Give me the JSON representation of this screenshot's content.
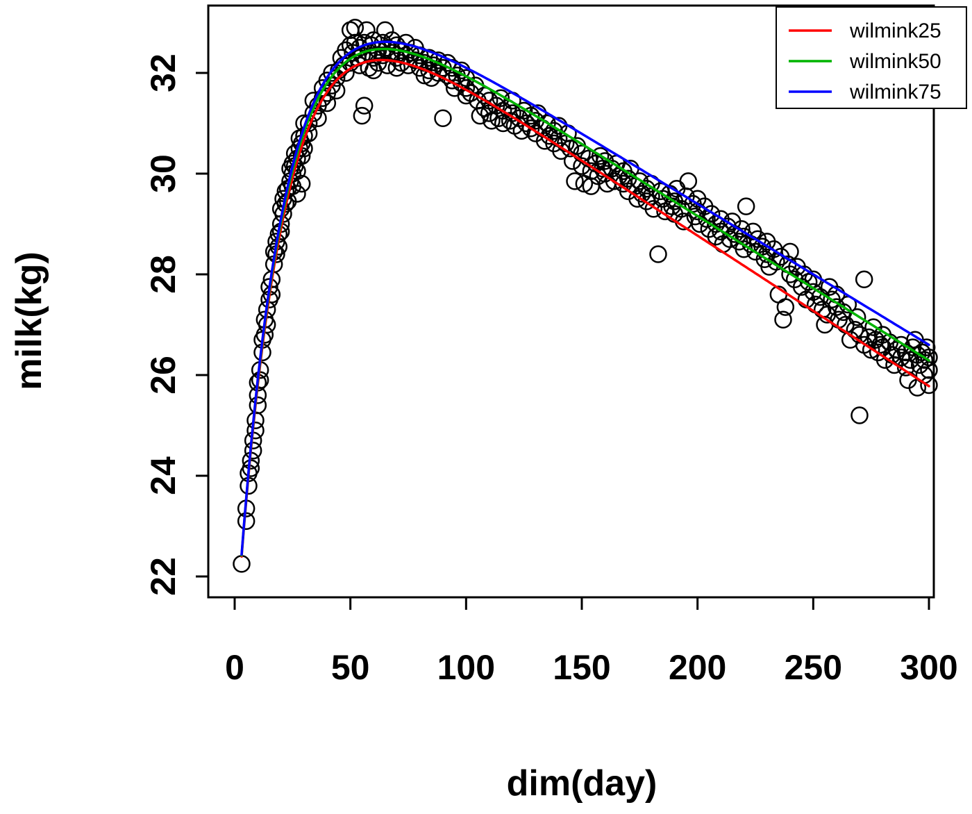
{
  "chart_data": {
    "type": "scatter",
    "title": "",
    "xlabel": "dim(day)",
    "ylabel": "milk(kg)",
    "xlim": [
      0,
      300
    ],
    "ylim": [
      22,
      33
    ],
    "x_ticks": [
      0,
      50,
      100,
      150,
      200,
      250,
      300
    ],
    "y_ticks": [
      22,
      24,
      26,
      28,
      30,
      32
    ],
    "grid": false,
    "point_style": {
      "shape": "open-circle",
      "color": "#000000"
    },
    "legend": {
      "position": "topright",
      "entries": [
        {
          "label": "wilmink25",
          "color": "#ff0000"
        },
        {
          "label": "wilmink50",
          "color": "#00b400"
        },
        {
          "label": "wilmink75",
          "color": "#0000ff"
        }
      ]
    },
    "curves": [
      {
        "name": "wilmink25",
        "color": "#ff0000",
        "model": "a + b*exp(-k*t) + c*t",
        "a": 34.75,
        "b": -14.25,
        "c": -0.0299,
        "k": 0.05,
        "t_start": 3,
        "t_end": 300
      },
      {
        "name": "wilmink50",
        "color": "#00b400",
        "model": "a + b*exp(-k*t) + c*t",
        "a": 34.9,
        "b": -14.4,
        "c": -0.0287,
        "k": 0.05,
        "t_start": 3,
        "t_end": 300
      },
      {
        "name": "wilmink75",
        "color": "#0000ff",
        "model": "a + b*exp(-k*t) + c*t",
        "a": 35.0,
        "b": -14.5,
        "c": -0.028,
        "k": 0.05,
        "t_start": 3,
        "t_end": 300
      }
    ],
    "points": [
      [
        3,
        22.25
      ],
      [
        5,
        23.1
      ],
      [
        5,
        23.35
      ],
      [
        6,
        23.8
      ],
      [
        6,
        24.05
      ],
      [
        7,
        24.3
      ],
      [
        7,
        24.15
      ],
      [
        8,
        24.7
      ],
      [
        8,
        24.5
      ],
      [
        9,
        25.1
      ],
      [
        9,
        24.9
      ],
      [
        10,
        25.6
      ],
      [
        10,
        25.85
      ],
      [
        10,
        25.4
      ],
      [
        11,
        26.1
      ],
      [
        11,
        25.9
      ],
      [
        12,
        26.45
      ],
      [
        12,
        26.7
      ],
      [
        13,
        26.8
      ],
      [
        13,
        27.1
      ],
      [
        14,
        27.3
      ],
      [
        14,
        27.0
      ],
      [
        15,
        27.5
      ],
      [
        15,
        27.75
      ],
      [
        16,
        27.9
      ],
      [
        16,
        27.6
      ],
      [
        17,
        28.2
      ],
      [
        17,
        28.45
      ],
      [
        18,
        28.4
      ],
      [
        18,
        28.65
      ],
      [
        19,
        28.8
      ],
      [
        19,
        28.55
      ],
      [
        20,
        29.0
      ],
      [
        20,
        29.3
      ],
      [
        20,
        28.85
      ],
      [
        21,
        29.2
      ],
      [
        21,
        29.5
      ],
      [
        22,
        29.4
      ],
      [
        22,
        29.65
      ],
      [
        23,
        29.7
      ],
      [
        23,
        29.45
      ],
      [
        24,
        29.85
      ],
      [
        24,
        30.1
      ],
      [
        25,
        30.0
      ],
      [
        25,
        29.75
      ],
      [
        25,
        30.2
      ],
      [
        26,
        30.15
      ],
      [
        26,
        30.4
      ],
      [
        27,
        30.3
      ],
      [
        27,
        30.05
      ],
      [
        27,
        29.6
      ],
      [
        28,
        30.5
      ],
      [
        28,
        30.7
      ],
      [
        29,
        30.6
      ],
      [
        29,
        30.35
      ],
      [
        29,
        29.8
      ],
      [
        30,
        30.75
      ],
      [
        30,
        31.0
      ],
      [
        30,
        30.5
      ],
      [
        32,
        31.0
      ],
      [
        32,
        30.8
      ],
      [
        34,
        31.2
      ],
      [
        34,
        31.45
      ],
      [
        36,
        31.35
      ],
      [
        36,
        31.1
      ],
      [
        38,
        31.5
      ],
      [
        38,
        31.7
      ],
      [
        40,
        31.6
      ],
      [
        40,
        31.85
      ],
      [
        40,
        31.4
      ],
      [
        42,
        31.75
      ],
      [
        42,
        32.0
      ],
      [
        44,
        31.9
      ],
      [
        44,
        31.65
      ],
      [
        45,
        32.05
      ],
      [
        46,
        32.3
      ],
      [
        47,
        32.15
      ],
      [
        48,
        32.45
      ],
      [
        48,
        32.0
      ],
      [
        50,
        32.55
      ],
      [
        50,
        32.85
      ],
      [
        50,
        32.2
      ],
      [
        51,
        32.4
      ],
      [
        52,
        32.9
      ],
      [
        52,
        32.6
      ],
      [
        53,
        32.3
      ],
      [
        54,
        32.5
      ],
      [
        54,
        32.15
      ],
      [
        55,
        31.15
      ],
      [
        55,
        32.35
      ],
      [
        56,
        31.35
      ],
      [
        56,
        32.6
      ],
      [
        57,
        32.85
      ],
      [
        58,
        32.4
      ],
      [
        58,
        32.1
      ],
      [
        59,
        32.55
      ],
      [
        60,
        32.3
      ],
      [
        60,
        32.65
      ],
      [
        60,
        32.05
      ],
      [
        62,
        32.45
      ],
      [
        62,
        32.2
      ],
      [
        64,
        32.6
      ],
      [
        64,
        32.35
      ],
      [
        65,
        32.85
      ],
      [
        66,
        32.5
      ],
      [
        66,
        32.15
      ],
      [
        68,
        32.4
      ],
      [
        68,
        32.65
      ],
      [
        70,
        32.3
      ],
      [
        70,
        32.55
      ],
      [
        70,
        32.1
      ],
      [
        72,
        32.45
      ],
      [
        72,
        32.2
      ],
      [
        74,
        32.6
      ],
      [
        74,
        32.35
      ],
      [
        75,
        32.15
      ],
      [
        76,
        32.4
      ],
      [
        78,
        32.25
      ],
      [
        78,
        32.5
      ],
      [
        80,
        32.1
      ],
      [
        80,
        32.35
      ],
      [
        82,
        32.2
      ],
      [
        82,
        31.95
      ],
      [
        84,
        32.3
      ],
      [
        84,
        32.05
      ],
      [
        85,
        31.9
      ],
      [
        86,
        32.15
      ],
      [
        88,
        32.0
      ],
      [
        88,
        32.25
      ],
      [
        90,
        31.1
      ],
      [
        90,
        32.1
      ],
      [
        92,
        31.95
      ],
      [
        92,
        32.2
      ],
      [
        94,
        31.85
      ],
      [
        94,
        32.1
      ],
      [
        95,
        31.7
      ],
      [
        96,
        31.95
      ],
      [
        98,
        31.8
      ],
      [
        98,
        32.05
      ],
      [
        100,
        31.7
      ],
      [
        100,
        31.9
      ],
      [
        100,
        31.55
      ],
      [
        102,
        31.6
      ],
      [
        104,
        31.75
      ],
      [
        105,
        31.45
      ],
      [
        106,
        31.15
      ],
      [
        108,
        31.55
      ],
      [
        108,
        31.3
      ],
      [
        110,
        31.45
      ],
      [
        110,
        31.2
      ],
      [
        111,
        31.05
      ],
      [
        113,
        31.35
      ],
      [
        114,
        31.1
      ],
      [
        115,
        31.5
      ],
      [
        116,
        31.25
      ],
      [
        116,
        31.0
      ],
      [
        118,
        31.3
      ],
      [
        119,
        31.05
      ],
      [
        120,
        31.2
      ],
      [
        120,
        31.45
      ],
      [
        121,
        30.95
      ],
      [
        123,
        31.1
      ],
      [
        124,
        30.85
      ],
      [
        125,
        31.25
      ],
      [
        126,
        31.0
      ],
      [
        128,
        30.9
      ],
      [
        128,
        31.15
      ],
      [
        130,
        31.05
      ],
      [
        130,
        30.8
      ],
      [
        131,
        31.2
      ],
      [
        133,
        30.9
      ],
      [
        134,
        30.65
      ],
      [
        135,
        31.0
      ],
      [
        136,
        30.75
      ],
      [
        138,
        30.85
      ],
      [
        138,
        30.6
      ],
      [
        140,
        30.7
      ],
      [
        140,
        30.95
      ],
      [
        141,
        30.45
      ],
      [
        143,
        30.6
      ],
      [
        144,
        30.8
      ],
      [
        145,
        30.5
      ],
      [
        146,
        30.25
      ],
      [
        147,
        29.85
      ],
      [
        148,
        30.55
      ],
      [
        150,
        30.4
      ],
      [
        150,
        30.15
      ],
      [
        151,
        29.8
      ],
      [
        153,
        30.3
      ],
      [
        154,
        30.05
      ],
      [
        154,
        29.75
      ],
      [
        156,
        30.2
      ],
      [
        157,
        29.95
      ],
      [
        158,
        30.35
      ],
      [
        159,
        30.1
      ],
      [
        160,
        30.0
      ],
      [
        160,
        30.25
      ],
      [
        161,
        29.8
      ],
      [
        163,
        30.1
      ],
      [
        164,
        29.85
      ],
      [
        165,
        30.2
      ],
      [
        166,
        29.95
      ],
      [
        168,
        29.8
      ],
      [
        168,
        30.05
      ],
      [
        170,
        29.9
      ],
      [
        170,
        29.65
      ],
      [
        171,
        30.1
      ],
      [
        173,
        29.75
      ],
      [
        174,
        29.5
      ],
      [
        175,
        29.85
      ],
      [
        176,
        29.6
      ],
      [
        178,
        29.7
      ],
      [
        178,
        29.45
      ],
      [
        180,
        29.55
      ],
      [
        180,
        29.8
      ],
      [
        181,
        29.3
      ],
      [
        183,
        28.4
      ],
      [
        184,
        29.65
      ],
      [
        185,
        29.5
      ],
      [
        186,
        29.25
      ],
      [
        188,
        29.6
      ],
      [
        189,
        29.35
      ],
      [
        190,
        29.45
      ],
      [
        190,
        29.2
      ],
      [
        191,
        29.7
      ],
      [
        193,
        29.3
      ],
      [
        194,
        29.05
      ],
      [
        195,
        29.55
      ],
      [
        196,
        29.85
      ],
      [
        198,
        29.4
      ],
      [
        199,
        29.15
      ],
      [
        200,
        29.25
      ],
      [
        200,
        29.5
      ],
      [
        201,
        29.0
      ],
      [
        203,
        29.35
      ],
      [
        204,
        29.1
      ],
      [
        205,
        28.9
      ],
      [
        206,
        29.2
      ],
      [
        208,
        29.0
      ],
      [
        208,
        28.75
      ],
      [
        210,
        28.85
      ],
      [
        210,
        29.1
      ],
      [
        211,
        28.6
      ],
      [
        213,
        28.95
      ],
      [
        214,
        28.7
      ],
      [
        215,
        29.05
      ],
      [
        216,
        28.8
      ],
      [
        218,
        28.65
      ],
      [
        219,
        28.9
      ],
      [
        220,
        28.75
      ],
      [
        220,
        28.5
      ],
      [
        221,
        29.35
      ],
      [
        223,
        28.6
      ],
      [
        224,
        28.85
      ],
      [
        225,
        28.45
      ],
      [
        226,
        28.7
      ],
      [
        228,
        28.55
      ],
      [
        229,
        28.3
      ],
      [
        230,
        28.4
      ],
      [
        230,
        28.65
      ],
      [
        231,
        28.15
      ],
      [
        233,
        28.5
      ],
      [
        234,
        28.25
      ],
      [
        235,
        27.6
      ],
      [
        236,
        28.35
      ],
      [
        237,
        27.1
      ],
      [
        238,
        27.35
      ],
      [
        239,
        28.2
      ],
      [
        240,
        28.0
      ],
      [
        240,
        28.45
      ],
      [
        242,
        27.9
      ],
      [
        243,
        28.15
      ],
      [
        245,
        27.75
      ],
      [
        246,
        28.0
      ],
      [
        247,
        27.5
      ],
      [
        248,
        27.85
      ],
      [
        250,
        27.65
      ],
      [
        250,
        27.9
      ],
      [
        251,
        27.4
      ],
      [
        253,
        27.55
      ],
      [
        254,
        27.3
      ],
      [
        255,
        27.0
      ],
      [
        256,
        27.2
      ],
      [
        257,
        27.75
      ],
      [
        258,
        27.5
      ],
      [
        260,
        27.35
      ],
      [
        260,
        27.6
      ],
      [
        261,
        27.1
      ],
      [
        263,
        27.25
      ],
      [
        264,
        27.0
      ],
      [
        265,
        27.4
      ],
      [
        266,
        26.7
      ],
      [
        268,
        26.9
      ],
      [
        269,
        27.15
      ],
      [
        270,
        25.2
      ],
      [
        270,
        26.8
      ],
      [
        272,
        27.9
      ],
      [
        272,
        26.6
      ],
      [
        274,
        26.75
      ],
      [
        275,
        26.5
      ],
      [
        276,
        26.95
      ],
      [
        277,
        26.7
      ],
      [
        278,
        26.45
      ],
      [
        279,
        26.6
      ],
      [
        280,
        26.55
      ],
      [
        280,
        26.8
      ],
      [
        281,
        26.3
      ],
      [
        283,
        26.65
      ],
      [
        284,
        26.4
      ],
      [
        285,
        26.2
      ],
      [
        286,
        26.5
      ],
      [
        288,
        26.35
      ],
      [
        288,
        26.6
      ],
      [
        290,
        26.45
      ],
      [
        290,
        26.15
      ],
      [
        291,
        25.9
      ],
      [
        292,
        26.3
      ],
      [
        293,
        26.55
      ],
      [
        294,
        26.7
      ],
      [
        295,
        26.4
      ],
      [
        295,
        25.75
      ],
      [
        296,
        26.2
      ],
      [
        297,
        26.45
      ],
      [
        298,
        26.3
      ],
      [
        298,
        26.0
      ],
      [
        299,
        26.55
      ],
      [
        300,
        26.35
      ],
      [
        300,
        26.1
      ],
      [
        300,
        25.8
      ]
    ]
  }
}
